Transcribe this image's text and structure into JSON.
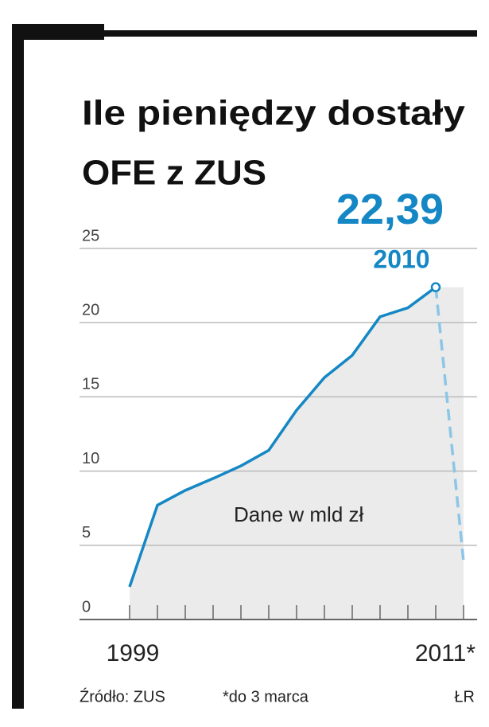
{
  "chart_data": {
    "type": "line",
    "title_lines": [
      "Ile pieniędzy dostały",
      "OFE z ZUS"
    ],
    "categories": [
      "1999",
      null,
      null,
      null,
      null,
      null,
      null,
      null,
      null,
      null,
      null,
      null,
      "2011*"
    ],
    "series": [
      {
        "color": "#1487c4",
        "values": [
          2.2,
          7.7,
          8.7,
          9.5,
          10.35,
          11.4,
          14.1,
          16.3,
          17.8,
          20.4,
          21.0,
          22.39,
          3.9
        ],
        "value_labels": [
          null,
          null,
          null,
          null,
          null,
          null,
          null,
          null,
          null,
          null,
          null,
          "22,39",
          null
        ]
      }
    ],
    "dashed_last_segment": true,
    "annotations": [
      "2010",
      "Dane w mld zł"
    ],
    "ylim": [
      0,
      25
    ],
    "yticks": [
      0,
      5,
      10,
      15,
      20,
      25
    ],
    "grid": true,
    "source": "Źródło: ZUS",
    "footnote": "*do 3 marca",
    "credit": "ŁR"
  }
}
